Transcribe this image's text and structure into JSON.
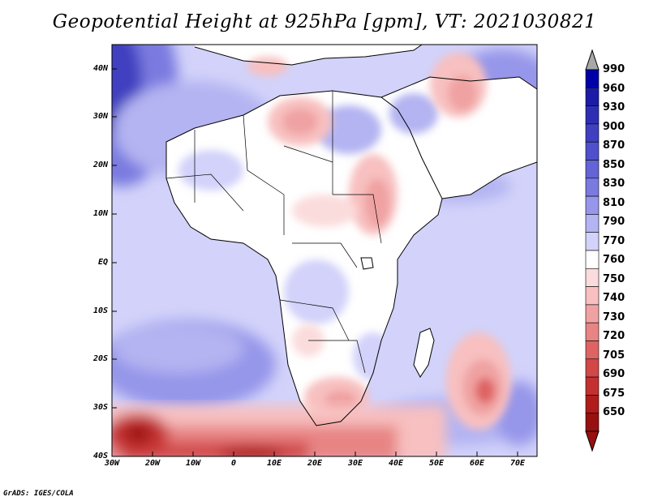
{
  "title": "Geopotential Height at 925hPa [gpm], VT: 2021030821",
  "credit": "GrADS: IGES/COLA",
  "lat_labels": [
    "40N",
    "30N",
    "20N",
    "10N",
    "EQ",
    "10S",
    "20S",
    "30S",
    "40S"
  ],
  "lon_labels": [
    "30W",
    "20W",
    "10W",
    "0",
    "10E",
    "20E",
    "30E",
    "40E",
    "50E",
    "60E",
    "70E"
  ],
  "colorbar": {
    "levels": [
      "990",
      "960",
      "930",
      "900",
      "870",
      "850",
      "830",
      "810",
      "790",
      "770",
      "760",
      "750",
      "740",
      "730",
      "720",
      "705",
      "690",
      "675",
      "650"
    ],
    "colors": [
      "#0000a8",
      "#1c1ca8",
      "#2e2eb4",
      "#3f3fc0",
      "#5050cc",
      "#6464d6",
      "#7a7ae0",
      "#9696ea",
      "#b4b4f2",
      "#d2d2fa",
      "#ffffff",
      "#fbdcdc",
      "#f8c0c0",
      "#f0a2a2",
      "#e88484",
      "#de6464",
      "#d24848",
      "#c43030",
      "#b01c1c",
      "#981010"
    ],
    "over_color": "#a8a8a8",
    "under_color": "#981010"
  },
  "map": {
    "ocean_base": "#d2d2fa",
    "land_base": "#ffffff",
    "coast_color": "#000000"
  }
}
